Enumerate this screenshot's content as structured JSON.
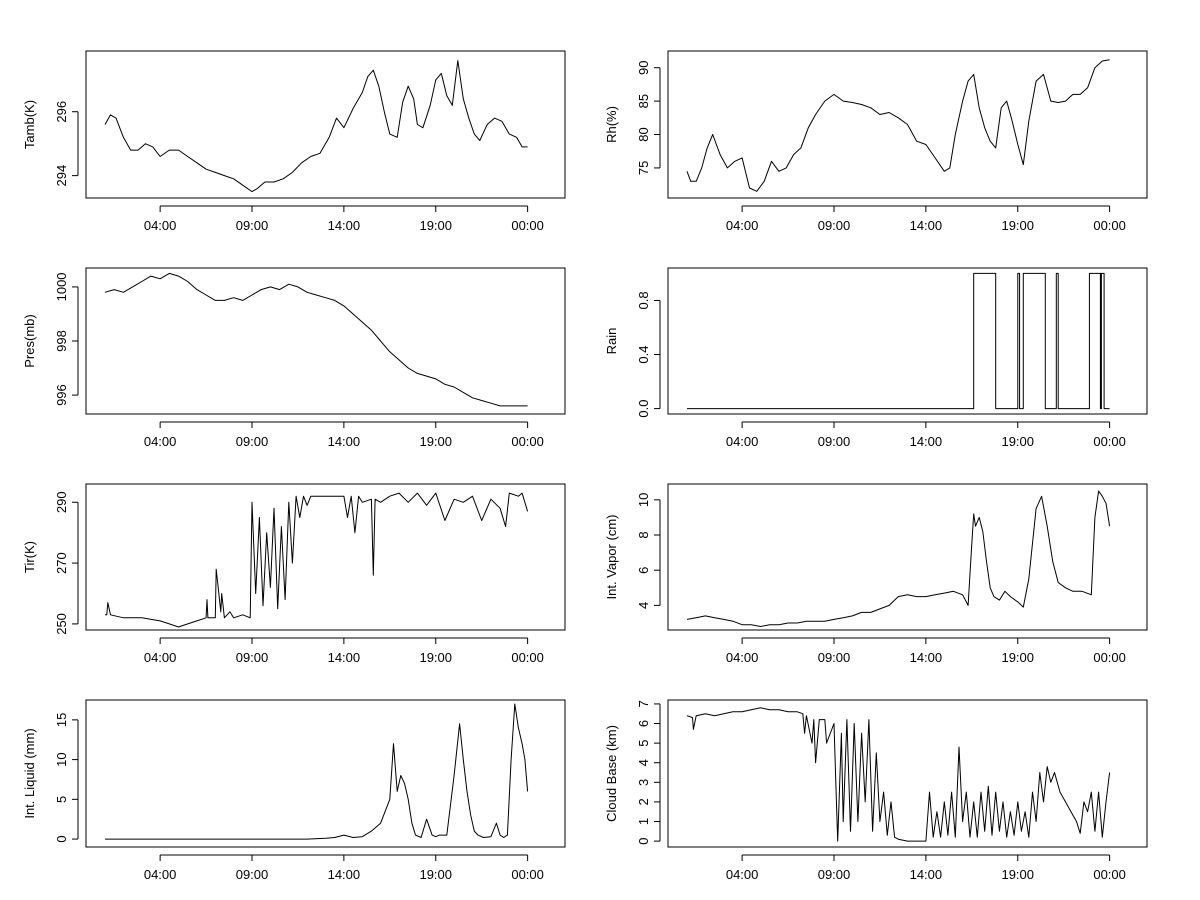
{
  "colors": {
    "background": "#ffffff",
    "line": "#000000"
  },
  "chart_data": [
    {
      "type": "line",
      "ylabel": "Tamb(K)",
      "xlim": [
        0,
        24
      ],
      "ylim": [
        293.3,
        297.9
      ],
      "x_ticks": [
        3,
        8,
        13,
        18,
        23
      ],
      "x_tick_labels": [
        "04:00",
        "09:00",
        "14:00",
        "19:00",
        "00:00"
      ],
      "y_ticks": [
        294,
        296
      ],
      "y_tick_labels": [
        "294",
        "296"
      ],
      "x": [
        0,
        0.3,
        0.6,
        1,
        1.4,
        1.8,
        2.2,
        2.6,
        3,
        3.5,
        4,
        4.5,
        5,
        5.5,
        6,
        6.5,
        7,
        7.5,
        8,
        8.3,
        8.7,
        9.2,
        9.7,
        10.2,
        10.7,
        11.2,
        11.7,
        12.2,
        12.6,
        13,
        13.5,
        14,
        14.3,
        14.6,
        14.9,
        15.2,
        15.5,
        15.9,
        16.2,
        16.5,
        16.8,
        17,
        17.3,
        17.7,
        18,
        18.3,
        18.6,
        18.9,
        19.2,
        19.5,
        19.8,
        20.1,
        20.4,
        20.8,
        21.2,
        21.6,
        22,
        22.4,
        22.7,
        23
      ],
      "y": [
        295.6,
        295.9,
        295.8,
        295.2,
        294.8,
        294.8,
        295.0,
        294.9,
        294.6,
        294.8,
        294.8,
        294.6,
        294.4,
        294.2,
        294.1,
        294.0,
        293.9,
        293.7,
        293.5,
        293.6,
        293.8,
        293.8,
        293.9,
        294.1,
        294.4,
        294.6,
        294.7,
        295.2,
        295.8,
        295.5,
        296.1,
        296.6,
        297.1,
        297.3,
        296.8,
        296.0,
        295.3,
        295.2,
        296.3,
        296.8,
        296.4,
        295.6,
        295.5,
        296.2,
        297.0,
        297.2,
        296.5,
        296.2,
        297.6,
        296.4,
        295.8,
        295.3,
        295.1,
        295.6,
        295.8,
        295.7,
        295.3,
        295.2,
        294.9,
        294.9
      ]
    },
    {
      "type": "line",
      "ylabel": "Rh(%)",
      "xlim": [
        0,
        24
      ],
      "ylim": [
        70.5,
        92.5
      ],
      "x_ticks": [
        3,
        8,
        13,
        18,
        23
      ],
      "x_tick_labels": [
        "04:00",
        "09:00",
        "14:00",
        "19:00",
        "00:00"
      ],
      "y_ticks": [
        75,
        80,
        85,
        90
      ],
      "y_tick_labels": [
        "75",
        "80",
        "85",
        "90"
      ],
      "x": [
        0,
        0.2,
        0.5,
        0.8,
        1.1,
        1.4,
        1.8,
        2.2,
        2.6,
        3,
        3.4,
        3.8,
        4.2,
        4.6,
        5,
        5.4,
        5.8,
        6.2,
        6.6,
        7,
        7.5,
        8,
        8.5,
        9,
        9.5,
        10,
        10.5,
        11,
        11.5,
        12,
        12.5,
        13,
        13.5,
        14,
        14.3,
        14.6,
        15,
        15.3,
        15.6,
        15.9,
        16.2,
        16.5,
        16.8,
        17.1,
        17.4,
        17.7,
        18,
        18.3,
        18.6,
        19,
        19.4,
        19.8,
        20.2,
        20.6,
        21,
        21.4,
        21.8,
        22.2,
        22.6,
        23
      ],
      "y": [
        74.5,
        73,
        73,
        75,
        78,
        80,
        77,
        75,
        76,
        76.5,
        72,
        71.5,
        73,
        76,
        74.5,
        75,
        77,
        78,
        81,
        83,
        85,
        86,
        85,
        84.8,
        84.5,
        84,
        83,
        83.3,
        82.5,
        81.5,
        79,
        78.5,
        76.5,
        74.5,
        75,
        80,
        85,
        88,
        89,
        84,
        81,
        79,
        78,
        84,
        85,
        82,
        78.5,
        75.5,
        82,
        88,
        89,
        85,
        84.8,
        85,
        86,
        86,
        87,
        90,
        91,
        91.2
      ]
    },
    {
      "type": "line",
      "ylabel": "Pres(mb)",
      "xlim": [
        0,
        24
      ],
      "ylim": [
        995.3,
        1000.7
      ],
      "x_ticks": [
        3,
        8,
        13,
        18,
        23
      ],
      "x_tick_labels": [
        "04:00",
        "09:00",
        "14:00",
        "19:00",
        "00:00"
      ],
      "y_ticks": [
        996,
        998,
        1000
      ],
      "y_tick_labels": [
        "996",
        "998",
        "1000"
      ],
      "x": [
        0,
        0.5,
        1,
        1.5,
        2,
        2.5,
        3,
        3.5,
        4,
        4.5,
        5,
        5.5,
        6,
        6.5,
        7,
        7.5,
        8,
        8.5,
        9,
        9.5,
        10,
        10.5,
        11,
        11.5,
        12,
        12.5,
        13,
        13.5,
        14,
        14.5,
        15,
        15.5,
        16,
        16.5,
        17,
        17.5,
        18,
        18.5,
        19,
        19.5,
        20,
        20.5,
        21,
        21.5,
        22,
        22.5,
        23
      ],
      "y": [
        999.8,
        999.9,
        999.8,
        1000.0,
        1000.2,
        1000.4,
        1000.3,
        1000.5,
        1000.4,
        1000.2,
        999.9,
        999.7,
        999.5,
        999.5,
        999.6,
        999.5,
        999.7,
        999.9,
        1000.0,
        999.9,
        1000.1,
        1000.0,
        999.8,
        999.7,
        999.6,
        999.5,
        999.3,
        999.0,
        998.7,
        998.4,
        998.0,
        997.6,
        997.3,
        997.0,
        996.8,
        996.7,
        996.6,
        996.4,
        996.3,
        996.1,
        995.9,
        995.8,
        995.7,
        995.6,
        995.6,
        995.6,
        995.6
      ]
    },
    {
      "type": "line",
      "ylabel": "Rain",
      "xlim": [
        0,
        24
      ],
      "ylim": [
        -0.04,
        1.04
      ],
      "x_ticks": [
        3,
        8,
        13,
        18,
        23
      ],
      "x_tick_labels": [
        "04:00",
        "09:00",
        "14:00",
        "19:00",
        "00:00"
      ],
      "y_ticks": [
        0,
        0.4,
        0.8
      ],
      "y_tick_labels": [
        "0.0",
        "0.4",
        "0.8"
      ],
      "x": [
        0,
        15.6,
        15.6,
        16.8,
        16.8,
        18.0,
        18.0,
        18.1,
        18.1,
        18.3,
        18.3,
        19.5,
        19.5,
        20.1,
        20.1,
        20.2,
        20.2,
        21.9,
        21.9,
        22.5,
        22.5,
        22.55,
        22.55,
        22.7,
        22.7,
        23
      ],
      "y": [
        0,
        0,
        1,
        1,
        0,
        0,
        1,
        1,
        0,
        0,
        1,
        1,
        0,
        0,
        1,
        1,
        0,
        0,
        1,
        1,
        0,
        0,
        1,
        1,
        0,
        0
      ]
    },
    {
      "type": "line",
      "ylabel": "Tir(K)",
      "xlim": [
        0,
        24
      ],
      "ylim": [
        248,
        296
      ],
      "x_ticks": [
        3,
        8,
        13,
        18,
        23
      ],
      "x_tick_labels": [
        "04:00",
        "09:00",
        "14:00",
        "19:00",
        "00:00"
      ],
      "y_ticks": [
        250,
        270,
        290
      ],
      "y_tick_labels": [
        "250",
        "270",
        "290"
      ],
      "x": [
        0,
        0.1,
        0.15,
        0.3,
        1,
        2,
        3,
        3.5,
        4,
        4.5,
        5,
        5.5,
        5.55,
        5.6,
        6,
        6.05,
        6.3,
        6.35,
        6.5,
        6.8,
        7,
        7.5,
        7.9,
        8,
        8.2,
        8.4,
        8.6,
        8.8,
        9,
        9.2,
        9.4,
        9.6,
        9.8,
        10,
        10.2,
        10.4,
        10.6,
        10.8,
        11,
        11.2,
        11.5,
        12,
        12.5,
        13,
        13.2,
        13.4,
        13.6,
        13.8,
        14,
        14.5,
        14.6,
        14.7,
        15,
        15.5,
        16,
        16.5,
        17,
        17.5,
        18,
        18.5,
        19,
        19.5,
        20,
        20.5,
        21,
        21.5,
        21.8,
        22,
        22.5,
        22.7,
        23
      ],
      "y": [
        253,
        253,
        257,
        253,
        252,
        252,
        251,
        250,
        249,
        250,
        251,
        252,
        258,
        252,
        252,
        268,
        254,
        260,
        252,
        254,
        252,
        253,
        252,
        290,
        260,
        285,
        256,
        280,
        262,
        288,
        255,
        282,
        258,
        290,
        270,
        292,
        285,
        292,
        289,
        292,
        292,
        292,
        292,
        292,
        285,
        292,
        280,
        292,
        290,
        291,
        266,
        291,
        290,
        292,
        293,
        290,
        293,
        289,
        293,
        284,
        291,
        290,
        292,
        284,
        291,
        288,
        282,
        293,
        292,
        293,
        287
      ]
    },
    {
      "type": "line",
      "ylabel": "Int. Vapor (cm)",
      "xlim": [
        0,
        24
      ],
      "ylim": [
        2.6,
        10.9
      ],
      "x_ticks": [
        3,
        8,
        13,
        18,
        23
      ],
      "x_tick_labels": [
        "04:00",
        "09:00",
        "14:00",
        "19:00",
        "00:00"
      ],
      "y_ticks": [
        4,
        6,
        8,
        10
      ],
      "y_tick_labels": [
        "4",
        "6",
        "8",
        "10"
      ],
      "x": [
        0,
        0.5,
        1,
        1.5,
        2,
        2.5,
        3,
        3.5,
        4,
        4.5,
        5,
        5.5,
        6,
        6.5,
        7,
        7.5,
        8,
        8.5,
        9,
        9.5,
        10,
        10.5,
        11,
        11.5,
        12,
        12.5,
        13,
        13.5,
        14,
        14.5,
        15,
        15.3,
        15.5,
        15.6,
        15.7,
        15.9,
        16.1,
        16.3,
        16.5,
        16.7,
        17,
        17.3,
        17.6,
        18,
        18.3,
        18.6,
        19,
        19.3,
        19.6,
        19.9,
        20.2,
        20.6,
        21,
        21.5,
        22,
        22.2,
        22.4,
        22.6,
        22.8,
        23
      ],
      "y": [
        3.2,
        3.3,
        3.4,
        3.3,
        3.2,
        3.1,
        2.9,
        2.9,
        2.8,
        2.9,
        2.9,
        3.0,
        3.0,
        3.1,
        3.1,
        3.1,
        3.2,
        3.3,
        3.4,
        3.6,
        3.6,
        3.8,
        4.0,
        4.5,
        4.6,
        4.5,
        4.5,
        4.6,
        4.7,
        4.8,
        4.6,
        4.0,
        7.5,
        9.2,
        8.5,
        9.0,
        8.2,
        6.5,
        5.0,
        4.5,
        4.3,
        4.8,
        4.5,
        4.2,
        3.9,
        5.5,
        9.5,
        10.2,
        8.5,
        6.5,
        5.3,
        5.0,
        4.8,
        4.8,
        4.6,
        9.0,
        10.5,
        10.2,
        9.8,
        8.5
      ]
    },
    {
      "type": "line",
      "ylabel": "Int. Liquid (mm)",
      "xlim": [
        0,
        24
      ],
      "ylim": [
        -1,
        17.5
      ],
      "x_ticks": [
        3,
        8,
        13,
        18,
        23
      ],
      "x_tick_labels": [
        "04:00",
        "09:00",
        "14:00",
        "19:00",
        "00:00"
      ],
      "y_ticks": [
        0,
        5,
        10,
        15
      ],
      "y_tick_labels": [
        "0",
        "5",
        "10",
        "15"
      ],
      "x": [
        0,
        2,
        4,
        6,
        8,
        10,
        11,
        12,
        12.5,
        13,
        13.5,
        14,
        14.5,
        15,
        15.5,
        15.7,
        15.9,
        16.1,
        16.3,
        16.5,
        16.7,
        16.9,
        17.2,
        17.5,
        17.8,
        18,
        18.2,
        18.6,
        19,
        19.3,
        19.5,
        19.7,
        19.9,
        20.1,
        20.3,
        20.6,
        21,
        21.3,
        21.5,
        21.7,
        21.9,
        22.1,
        22.3,
        22.5,
        22.7,
        22.85,
        23
      ],
      "y": [
        0,
        0,
        0,
        0,
        0,
        0,
        0,
        0.1,
        0.2,
        0.5,
        0.2,
        0.3,
        1,
        2,
        5,
        12,
        6,
        8,
        7,
        5,
        2,
        0.5,
        0.2,
        2.5,
        0.5,
        0.3,
        0.5,
        0.5,
        8,
        14.5,
        10,
        6,
        3,
        1,
        0.5,
        0.2,
        0.3,
        2,
        0.5,
        0.2,
        0.5,
        10,
        17,
        14,
        12,
        10,
        6
      ]
    },
    {
      "type": "line",
      "ylabel": "Cloud Base (km)",
      "xlim": [
        0,
        24
      ],
      "ylim": [
        -0.3,
        7.2
      ],
      "x_ticks": [
        3,
        8,
        13,
        18,
        23
      ],
      "x_tick_labels": [
        "04:00",
        "09:00",
        "14:00",
        "19:00",
        "00:00"
      ],
      "y_ticks": [
        0,
        1,
        2,
        3,
        4,
        5,
        6,
        7
      ],
      "y_tick_labels": [
        "0",
        "1",
        "2",
        "3",
        "4",
        "5",
        "6",
        "7"
      ],
      "x": [
        0,
        0.3,
        0.35,
        0.5,
        1,
        1.5,
        2,
        2.5,
        3,
        3.5,
        4,
        4.5,
        5,
        5.5,
        6,
        6.3,
        6.4,
        6.5,
        6.8,
        6.9,
        7,
        7.2,
        7.5,
        7.6,
        8,
        8.1,
        8.2,
        8.4,
        8.5,
        8.7,
        8.9,
        9.1,
        9.3,
        9.5,
        9.7,
        9.9,
        10.1,
        10.3,
        10.5,
        10.7,
        10.9,
        11.1,
        11.3,
        11.5,
        12,
        12.5,
        13,
        13.2,
        13.4,
        13.6,
        13.8,
        14,
        14.2,
        14.4,
        14.6,
        14.8,
        15,
        15.2,
        15.4,
        15.6,
        15.8,
        16,
        16.2,
        16.4,
        16.6,
        16.8,
        17,
        17.2,
        17.4,
        17.6,
        17.8,
        18,
        18.2,
        18.4,
        18.6,
        18.8,
        19,
        19.2,
        19.4,
        19.6,
        19.8,
        20,
        20.3,
        20.6,
        20.9,
        21.2,
        21.4,
        21.6,
        21.8,
        22,
        22.2,
        22.4,
        22.6,
        22.8,
        23
      ],
      "y": [
        6.4,
        6.3,
        5.7,
        6.4,
        6.5,
        6.4,
        6.5,
        6.6,
        6.6,
        6.7,
        6.8,
        6.7,
        6.7,
        6.6,
        6.6,
        6.5,
        5.5,
        6.4,
        5.0,
        6.2,
        4.0,
        6.2,
        6.2,
        5.0,
        6.0,
        3.0,
        0,
        5.5,
        1,
        6.2,
        0.5,
        6.0,
        1,
        5.5,
        2,
        6.2,
        0.5,
        4.5,
        1,
        2.5,
        0.3,
        2,
        0.2,
        0.1,
        0,
        0,
        0,
        2.5,
        0.2,
        1.5,
        0.2,
        2,
        0.3,
        2.5,
        0.2,
        4.8,
        1,
        2.5,
        0.2,
        2,
        0.2,
        2.5,
        0.5,
        2.8,
        0.3,
        2.5,
        0.5,
        2,
        0.2,
        1.5,
        0.3,
        2,
        0.5,
        1.5,
        0.2,
        2.5,
        1,
        3.5,
        2,
        3.8,
        3,
        3.5,
        2.5,
        2,
        1.5,
        1,
        0.4,
        2,
        1.5,
        2.5,
        0.5,
        2.5,
        0.2,
        2,
        3.5
      ]
    }
  ]
}
